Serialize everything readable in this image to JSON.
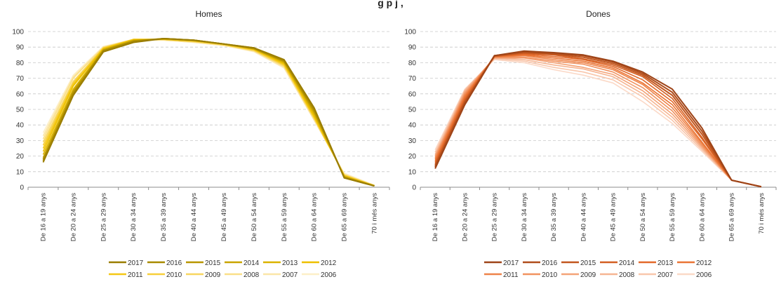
{
  "page": {
    "title_fragment": "g                            p     j ,"
  },
  "chart_data": [
    {
      "type": "line",
      "title": "Homes",
      "xlabel": "",
      "ylabel": "",
      "ylim": [
        0,
        100
      ],
      "yticks": [
        0,
        10,
        20,
        30,
        40,
        50,
        60,
        70,
        80,
        90,
        100
      ],
      "grid": true,
      "legend": "bottom",
      "categories": [
        "De 16 a 19 anys",
        "De 20 a 24 anys",
        "De 25 a 29 anys",
        "De 30 a 34 anys",
        "De 35 a 39 anys",
        "De 40 a 44 anys",
        "De 45 a 49 anys",
        "De 50 a 54 anys",
        "De 55 a 59 anys",
        "De 60 a 64 anys",
        "De 65 a 69 anys",
        "70 i més anys"
      ],
      "series": [
        {
          "name": "2017",
          "color": "#9a7d00",
          "values": [
            16,
            59,
            87,
            93,
            95.5,
            94.5,
            92,
            89.5,
            82,
            51,
            6,
            0.8
          ]
        },
        {
          "name": "2016",
          "color": "#a88a00",
          "values": [
            17,
            60,
            87.5,
            93.5,
            95.5,
            94.5,
            92,
            89.5,
            81.5,
            50,
            6,
            0.8
          ]
        },
        {
          "name": "2015",
          "color": "#b89600",
          "values": [
            18,
            61,
            88,
            94,
            95.5,
            94.5,
            92,
            89,
            81,
            49,
            6.5,
            0.9
          ]
        },
        {
          "name": "2014",
          "color": "#c9a400",
          "values": [
            19,
            62,
            88,
            94,
            95.5,
            94.5,
            92,
            89,
            80.5,
            48,
            6.5,
            0.9
          ]
        },
        {
          "name": "2013",
          "color": "#dbb300",
          "values": [
            21,
            63,
            88.5,
            94.5,
            95,
            94,
            92,
            89,
            80,
            47,
            7,
            0.9
          ]
        },
        {
          "name": "2012",
          "color": "#eec000",
          "values": [
            23,
            65,
            89,
            94.5,
            95,
            94,
            92,
            88.5,
            79.5,
            46,
            7,
            1
          ]
        },
        {
          "name": "2011",
          "color": "#f5c814",
          "values": [
            25,
            66,
            89,
            95,
            95,
            94,
            92,
            88.5,
            79,
            45,
            7.5,
            1
          ]
        },
        {
          "name": "2010",
          "color": "#f7cf3a",
          "values": [
            27,
            67,
            89.5,
            95,
            95,
            94,
            91.5,
            88,
            78.5,
            45,
            7.5,
            1
          ]
        },
        {
          "name": "2009",
          "color": "#f8d65f",
          "values": [
            29,
            68,
            89.5,
            95,
            95,
            93.5,
            91.5,
            88,
            78,
            44,
            8,
            1
          ]
        },
        {
          "name": "2008",
          "color": "#fadf88",
          "values": [
            31,
            70,
            90,
            95,
            94.5,
            93.5,
            91.5,
            87.5,
            77.5,
            44,
            8,
            1.2
          ]
        },
        {
          "name": "2007",
          "color": "#fbe6a7",
          "values": [
            33,
            71,
            90,
            95,
            94.5,
            93,
            91,
            87.5,
            77,
            43,
            8.5,
            1.2
          ]
        },
        {
          "name": "2006",
          "color": "#fdefc8",
          "values": [
            35,
            72,
            90.5,
            95,
            94.5,
            93,
            91,
            87,
            76.5,
            43,
            9,
            1.3
          ]
        }
      ]
    },
    {
      "type": "line",
      "title": "Dones",
      "xlabel": "",
      "ylabel": "",
      "ylim": [
        0,
        100
      ],
      "yticks": [
        0,
        10,
        20,
        30,
        40,
        50,
        60,
        70,
        80,
        90,
        100
      ],
      "grid": true,
      "legend": "bottom",
      "categories": [
        "De 16 a 19 anys",
        "De 20 a 24 anys",
        "De 25 a 29 anys",
        "De 30 a 34 anys",
        "De 35 a 39 anys",
        "De 40 a 44 anys",
        "De 45 a 49 anys",
        "De 50 a 54 anys",
        "De 55 a 59 anys",
        "De 60 a 64 anys",
        "De 65 a 69 anys",
        "70 i més anys"
      ],
      "series": [
        {
          "name": "2017",
          "color": "#9e4418",
          "values": [
            12,
            53,
            84.5,
            87.5,
            86.5,
            85,
            81,
            74,
            63,
            38,
            4.5,
            0.3
          ]
        },
        {
          "name": "2016",
          "color": "#b04d1b",
          "values": [
            13,
            54,
            84.5,
            87,
            86,
            84.5,
            80.5,
            73,
            61,
            36,
            4.5,
            0.3
          ]
        },
        {
          "name": "2015",
          "color": "#c2561e",
          "values": [
            14,
            55,
            84.5,
            86.5,
            85.5,
            83.5,
            79.5,
            72,
            59,
            34,
            4.5,
            0.3
          ]
        },
        {
          "name": "2014",
          "color": "#d35f22",
          "values": [
            15,
            56,
            84,
            86,
            85,
            82.5,
            78.5,
            71,
            57,
            32,
            4.5,
            0.4
          ]
        },
        {
          "name": "2013",
          "color": "#e3692a",
          "values": [
            16,
            57,
            84,
            85.5,
            84,
            82,
            77.5,
            69,
            55,
            31,
            4.5,
            0.4
          ]
        },
        {
          "name": "2012",
          "color": "#ea7535",
          "values": [
            17,
            58,
            84,
            85,
            83,
            81,
            76.5,
            67,
            53,
            29,
            4.5,
            0.4
          ]
        },
        {
          "name": "2011",
          "color": "#ee8349",
          "values": [
            18,
            59,
            83.5,
            84.5,
            82,
            80,
            75.5,
            66,
            51,
            28,
            4.5,
            0.4
          ]
        },
        {
          "name": "2010",
          "color": "#f1925f",
          "values": [
            19,
            60,
            83.5,
            83.5,
            81,
            79,
            74,
            64,
            49,
            27,
            4.5,
            0.4
          ]
        },
        {
          "name": "2009",
          "color": "#f4a377",
          "values": [
            20,
            61,
            83,
            83,
            80,
            77,
            72.5,
            62,
            47,
            26,
            4.5,
            0.5
          ]
        },
        {
          "name": "2008",
          "color": "#f6b592",
          "values": [
            21,
            62,
            83,
            82,
            78.5,
            76,
            71,
            60,
            45,
            25,
            4.5,
            0.5
          ]
        },
        {
          "name": "2007",
          "color": "#f9c7ac",
          "values": [
            22.5,
            62.5,
            82.5,
            81,
            77,
            74,
            69,
            58,
            43,
            24,
            4.5,
            0.5
          ]
        },
        {
          "name": "2006",
          "color": "#fbd9c7",
          "values": [
            24,
            63,
            82,
            80,
            75.5,
            72,
            67,
            55,
            41,
            23,
            4.5,
            0.5
          ]
        }
      ]
    }
  ]
}
